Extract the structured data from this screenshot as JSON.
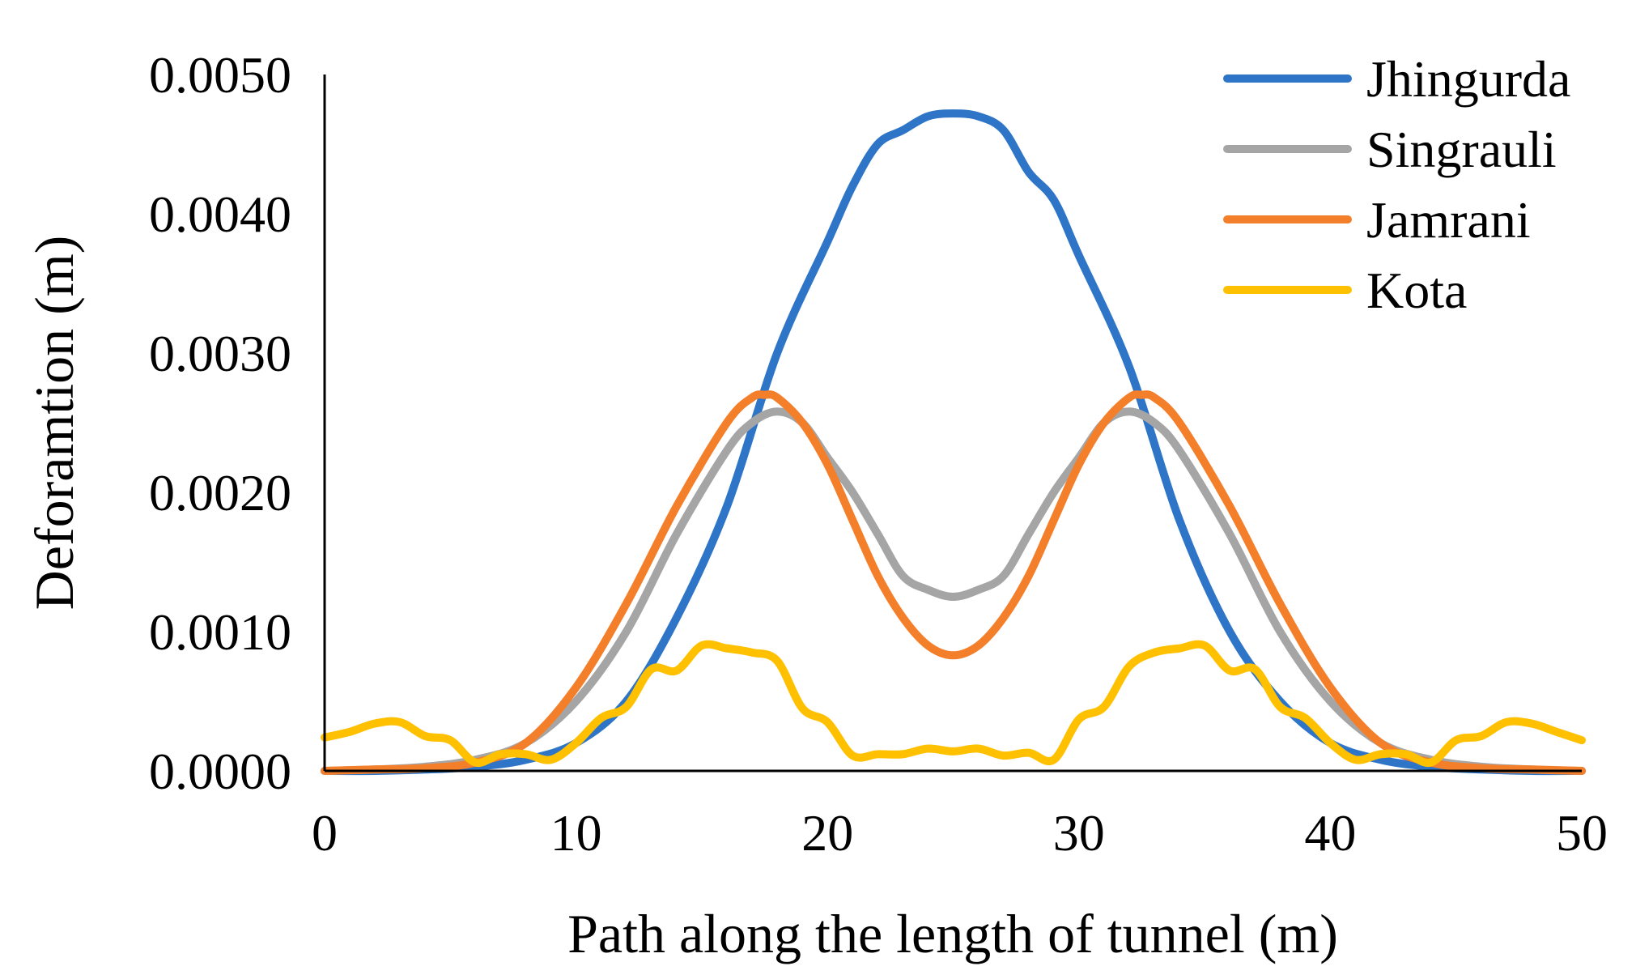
{
  "chart_data": {
    "type": "line",
    "title": "",
    "xlabel": "Path along the length of tunnel (m)",
    "ylabel": "Deforamtion (m)",
    "xlim": [
      0,
      50
    ],
    "ylim": [
      0.0,
      0.005
    ],
    "x_ticks": [
      "0",
      "10",
      "20",
      "30",
      "40",
      "50"
    ],
    "y_ticks": [
      "0.0000",
      "0.0010",
      "0.0020",
      "0.0030",
      "0.0040",
      "0.0050"
    ],
    "grid": false,
    "legend_position": "top-right",
    "series": [
      {
        "name": "Jhingurda",
        "color": "#2E75C7",
        "x": [
          0,
          2,
          4,
          6,
          8,
          10,
          12,
          14,
          16,
          18,
          20,
          21,
          22,
          23,
          24,
          25,
          26,
          27,
          28,
          29,
          30,
          32,
          34,
          36,
          38,
          40,
          42,
          44,
          46,
          48,
          50
        ],
        "y": [
          0.0,
          0.0,
          1e-05,
          3e-05,
          8e-05,
          0.0002,
          0.0005,
          0.0011,
          0.0019,
          0.003,
          0.0038,
          0.0042,
          0.0045,
          0.0046,
          0.0047,
          0.00472,
          0.0047,
          0.0046,
          0.0043,
          0.0041,
          0.0037,
          0.0029,
          0.0018,
          0.001,
          0.0005,
          0.0002,
          8e-05,
          3e-05,
          1e-05,
          0.0,
          0.0
        ]
      },
      {
        "name": "Singrauli",
        "color": "#A5A5A5",
        "x": [
          0,
          2,
          4,
          6,
          8,
          10,
          12,
          14,
          16,
          17,
          18,
          19,
          20,
          21,
          22,
          23,
          24,
          25,
          26,
          27,
          28,
          29,
          30,
          31,
          32,
          33,
          34,
          36,
          38,
          40,
          42,
          44,
          46,
          48,
          50
        ],
        "y": [
          0.0,
          1e-05,
          3e-05,
          8e-05,
          0.0002,
          0.0005,
          0.001,
          0.0017,
          0.0023,
          0.0025,
          0.00258,
          0.0025,
          0.00225,
          0.002,
          0.0017,
          0.0014,
          0.0013,
          0.00125,
          0.0013,
          0.0014,
          0.0017,
          0.002,
          0.00225,
          0.0025,
          0.00258,
          0.0025,
          0.0023,
          0.0017,
          0.001,
          0.0005,
          0.0002,
          8e-05,
          3e-05,
          1e-05,
          0.0
        ]
      },
      {
        "name": "Jamrani",
        "color": "#F47F2B",
        "x": [
          0,
          2,
          4,
          6,
          8,
          10,
          12,
          14,
          16,
          17,
          17.5,
          18,
          19,
          20,
          21,
          22,
          23,
          24,
          25,
          26,
          27,
          28,
          29,
          30,
          31,
          32,
          32.5,
          33,
          34,
          36,
          38,
          40,
          42,
          44,
          46,
          48,
          50
        ],
        "y": [
          0.0,
          1e-05,
          2e-05,
          6e-05,
          0.0002,
          0.0006,
          0.0012,
          0.0019,
          0.0025,
          0.00268,
          0.0027,
          0.00268,
          0.0025,
          0.0022,
          0.0018,
          0.0014,
          0.0011,
          0.0009,
          0.00083,
          0.0009,
          0.0011,
          0.0014,
          0.0018,
          0.0022,
          0.0025,
          0.00268,
          0.0027,
          0.00268,
          0.0025,
          0.0019,
          0.0012,
          0.0006,
          0.0002,
          6e-05,
          2e-05,
          1e-05,
          0.0
        ]
      },
      {
        "name": "Kota",
        "color": "#FFC000",
        "x": [
          0,
          1,
          2,
          3,
          4,
          5,
          6,
          7,
          8,
          9,
          10,
          11,
          12,
          13,
          14,
          15,
          16,
          17,
          18,
          19,
          20,
          21,
          22,
          23,
          24,
          25,
          26,
          27,
          28,
          29,
          30,
          31,
          32,
          33,
          34,
          35,
          36,
          37,
          38,
          39,
          40,
          41,
          42,
          43,
          44,
          45,
          46,
          47,
          48,
          49,
          50
        ],
        "y": [
          0.00024,
          0.00028,
          0.00034,
          0.00035,
          0.00025,
          0.00022,
          6e-05,
          0.00012,
          0.00012,
          8e-05,
          0.0002,
          0.00038,
          0.00046,
          0.00073,
          0.00072,
          0.0009,
          0.00088,
          0.00085,
          0.00079,
          0.00045,
          0.00035,
          0.00011,
          0.00012,
          0.00012,
          0.00016,
          0.00014,
          0.00016,
          0.00011,
          0.00013,
          8e-05,
          0.00037,
          0.00046,
          0.00075,
          0.00085,
          0.00088,
          0.0009,
          0.00072,
          0.00073,
          0.00046,
          0.00038,
          0.0002,
          8e-05,
          0.00012,
          0.00012,
          6e-05,
          0.00022,
          0.00025,
          0.00035,
          0.00034,
          0.00028,
          0.00022
        ]
      }
    ]
  }
}
